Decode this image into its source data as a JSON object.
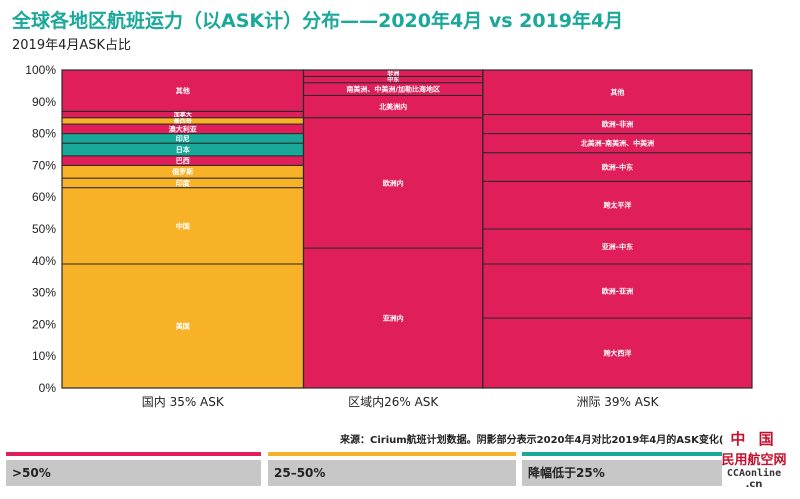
{
  "header": {
    "title": "全球各地区航班运力（以ASK计）分布——2020年4月 vs 2019年4月",
    "subtitle": "2019年4月ASK占比"
  },
  "source": "来源：Cirium航班计划数据。阴影部分表示2020年4月对比2019年4月的ASK变化(",
  "legend": [
    {
      "label": ">50%",
      "color": "#e01e5a"
    },
    {
      "label": "25–50%",
      "color": "#f7b228"
    },
    {
      "label": "降幅低于25%",
      "color": "#19a99a"
    }
  ],
  "watermark": {
    "line1": "中 国",
    "line2": "民用航空网",
    "line3": "CCAonline",
    "line4": ".cn"
  },
  "chart_data": {
    "type": "bar",
    "stacked": true,
    "variable_width": true,
    "ylim": [
      0,
      100
    ],
    "yticks": [
      "0%",
      "10%",
      "20%",
      "30%",
      "40%",
      "50%",
      "60%",
      "70%",
      "80%",
      "90%",
      "100%"
    ],
    "legend_position": "bottom",
    "category_colors": {
      "pink": "#e01e5a",
      "yellow": "#f7b228",
      "green": "#19a99a"
    },
    "columns": [
      {
        "label": "国内 35% ASK",
        "share": 35,
        "segments": [
          {
            "name": "美国",
            "value": 39,
            "color": "#f7b228"
          },
          {
            "name": "中国",
            "value": 24,
            "color": "#f7b228"
          },
          {
            "name": "印度",
            "value": 3,
            "color": "#f7b228"
          },
          {
            "name": "俄罗斯",
            "value": 4,
            "color": "#f7b228"
          },
          {
            "name": "巴西",
            "value": 3,
            "color": "#e01e5a"
          },
          {
            "name": "日本",
            "value": 4,
            "color": "#19a99a"
          },
          {
            "name": "印尼",
            "value": 3,
            "color": "#19a99a"
          },
          {
            "name": "澳大利亚",
            "value": 3,
            "color": "#e01e5a"
          },
          {
            "name": "墨西哥",
            "value": 2,
            "color": "#f7b228"
          },
          {
            "name": "加拿大",
            "value": 2,
            "color": "#e01e5a"
          },
          {
            "name": "其他",
            "value": 13,
            "color": "#e01e5a"
          }
        ]
      },
      {
        "label": "区域内26% ASK",
        "share": 26,
        "segments": [
          {
            "name": "亚洲内",
            "value": 44,
            "color": "#e01e5a"
          },
          {
            "name": "欧洲内",
            "value": 41,
            "color": "#e01e5a"
          },
          {
            "name": "北美洲内",
            "value": 7,
            "color": "#e01e5a"
          },
          {
            "name": "南美洲、中美洲/加勒比海地区",
            "value": 4,
            "color": "#e01e5a"
          },
          {
            "name": "中东",
            "value": 2,
            "color": "#e01e5a"
          },
          {
            "name": "非洲",
            "value": 2,
            "color": "#e01e5a"
          }
        ]
      },
      {
        "label": "洲际 39% ASK",
        "share": 39,
        "segments": [
          {
            "name": "跨大西洋",
            "value": 22,
            "color": "#e01e5a"
          },
          {
            "name": "欧洲–亚洲",
            "value": 17,
            "color": "#e01e5a"
          },
          {
            "name": "亚洲–中东",
            "value": 11,
            "color": "#e01e5a"
          },
          {
            "name": "跨太平洋",
            "value": 15,
            "color": "#e01e5a"
          },
          {
            "name": "欧洲–中东",
            "value": 9,
            "color": "#e01e5a"
          },
          {
            "name": "北美洲–南美洲、中美洲",
            "value": 6,
            "color": "#e01e5a"
          },
          {
            "name": "欧洲–非洲",
            "value": 6,
            "color": "#e01e5a"
          },
          {
            "name": "其他",
            "value": 14,
            "color": "#e01e5a"
          }
        ]
      }
    ]
  }
}
